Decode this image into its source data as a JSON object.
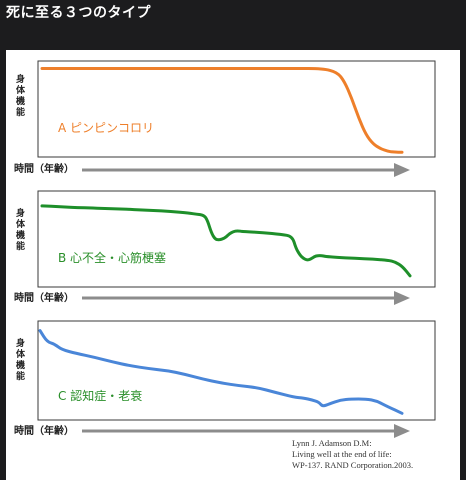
{
  "heading": "死に至る３つのタイプ",
  "colors": {
    "orange": "#ee7f2a",
    "green": "#1e8f2a",
    "blue": "#4a86d8",
    "label_green": "#2a8f2a",
    "axis": "#8c8c8c"
  },
  "chart_data": [
    {
      "type": "line",
      "title": "",
      "ylabel": "身体機能",
      "xlabel": "時間（年齢）",
      "series_label": "A ピンピンコロリ",
      "color": "#ee7f2a",
      "xlim": [
        0,
        100
      ],
      "ylim": [
        0,
        100
      ],
      "x": [
        0,
        10,
        20,
        30,
        40,
        50,
        60,
        70,
        78,
        82,
        84,
        86,
        88,
        90,
        92,
        94,
        96,
        98,
        100
      ],
      "values": [
        94,
        94,
        94,
        94,
        94,
        94,
        94,
        94,
        94,
        90,
        80,
        62,
        40,
        22,
        12,
        7,
        4,
        3,
        3
      ]
    },
    {
      "type": "line",
      "title": "",
      "ylabel": "身体機能",
      "xlabel": "時間（年齢）",
      "series_label": "B 心不全・心筋梗塞",
      "color": "#1e8f2a",
      "xlim": [
        0,
        100
      ],
      "ylim": [
        0,
        100
      ],
      "x": [
        0,
        5,
        10,
        20,
        30,
        35,
        40,
        42,
        44,
        45,
        46,
        47,
        48,
        49,
        50,
        51,
        52,
        53,
        55,
        60,
        65,
        68,
        69,
        70,
        71,
        72,
        73,
        74,
        75,
        76,
        77,
        80,
        85,
        90,
        94,
        96,
        98,
        100
      ],
      "values": [
        86,
        85,
        84,
        83,
        81,
        80,
        78,
        77,
        76,
        70,
        57,
        50,
        49,
        50,
        52,
        56,
        58,
        59,
        58,
        57,
        55,
        53,
        40,
        33,
        29,
        27,
        28,
        31,
        32,
        32,
        31,
        30,
        29,
        28,
        27,
        25,
        20,
        10
      ]
    },
    {
      "type": "line",
      "title": "",
      "ylabel": "身体機能",
      "xlabel": "時間（年齢）",
      "series_label": "C 認知症・老衰",
      "color": "#4a86d8",
      "xlim": [
        0,
        100
      ],
      "ylim": [
        0,
        100
      ],
      "x": [
        0,
        2,
        4,
        6,
        10,
        15,
        20,
        25,
        30,
        35,
        40,
        45,
        50,
        55,
        60,
        65,
        70,
        73,
        75,
        77,
        78,
        80,
        83,
        86,
        90,
        93,
        96,
        100
      ],
      "values": [
        92,
        80,
        78,
        72,
        68,
        64,
        59,
        55,
        52,
        50,
        46,
        41,
        37,
        34,
        32,
        27,
        22,
        21,
        19,
        17,
        12,
        15,
        19,
        20,
        20,
        18,
        12,
        5
      ]
    }
  ],
  "citation": [
    "Lynn J. Adamson D.M:",
    "Living well at the end of life:",
    "WP-137. RAND Corporation.2003."
  ]
}
